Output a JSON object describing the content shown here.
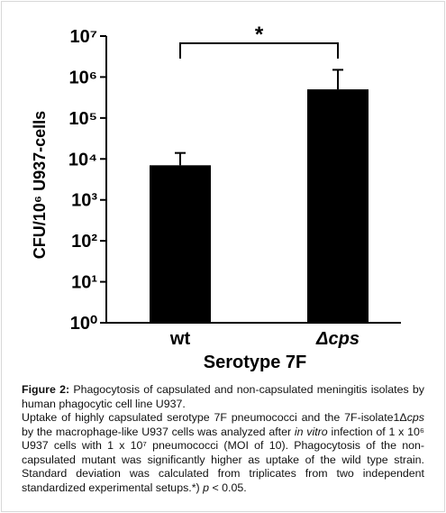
{
  "chart_data": {
    "type": "bar",
    "log_scale": true,
    "categories": [
      "wt",
      "Δcps"
    ],
    "values": [
      7000,
      500000
    ],
    "errors": [
      7000,
      1000000
    ],
    "color": "#000000",
    "ylim": [
      1,
      10000000
    ],
    "yticks": [
      {
        "value": 1,
        "label": "10⁰"
      },
      {
        "value": 10,
        "label": "10¹"
      },
      {
        "value": 100,
        "label": "10²"
      },
      {
        "value": 1000,
        "label": "10³"
      },
      {
        "value": 10000,
        "label": "10⁴"
      },
      {
        "value": 100000,
        "label": "10⁵"
      },
      {
        "value": 1000000,
        "label": "10⁶"
      },
      {
        "value": 10000000,
        "label": "10⁷"
      }
    ],
    "y_label": "CFU/10⁶ U937-cells",
    "x_label": "Serotype 7F",
    "annotation": "*"
  },
  "caption": {
    "figure_label": "Figure 2:",
    "title": "Phagocytosis of capsulated and non-capsulated meningitis isolates by human phagocytic cell line U937.",
    "body": [
      "Uptake of highly capsulated serotype 7F pneumococci and the 7F-isolate1Δ",
      "cps",
      " by the macrophage-like U937 cells was analyzed after ",
      "in vitro",
      " infection of 1 x 10⁶ U937 cells with 1 x 10⁷ pneumococci (MOI of 10). Phagocytosis of the non-capsulated mutant was significantly higher as uptake of the wild type strain. Standard deviation was calculated from triplicates from two independent standardized experimental setups.*) ",
      "p",
      " < 0.05."
    ]
  }
}
